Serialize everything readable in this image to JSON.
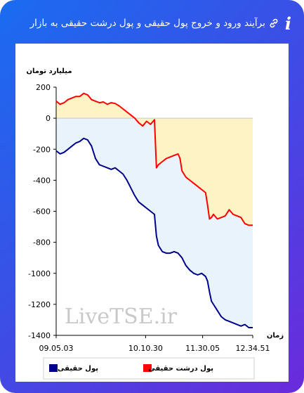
{
  "header": {
    "title": "برآیند ورود و خروج پول حقیقی و پول درشت حقیقی به بازار",
    "info_icon": "i",
    "info_icon_name": "info-icon",
    "link_icon_name": "link-icon"
  },
  "colors": {
    "frame_start": "#1a6cf0",
    "frame_end": "#6a2bdc",
    "real_money": "#00008b",
    "big_real_money": "#ff0000",
    "area_yellow": "#fdf3c4",
    "area_blue": "#e8f3fc"
  },
  "watermark": "LiveTSE.ir",
  "chart_data": {
    "type": "line",
    "ylabel": "میلیارد تومان",
    "xlabel": "زمان",
    "ylim": [
      -1400,
      200
    ],
    "y_ticks": [
      "200",
      "0",
      "-200",
      "-400",
      "-600",
      "-800",
      "-1000",
      "-1200",
      "-1400"
    ],
    "y_tick_values": [
      200,
      0,
      -200,
      -400,
      -600,
      -800,
      -1000,
      -1200,
      -1400
    ],
    "x_ticks": [
      "09.05.03",
      "10.10.30",
      "11.30.05",
      "12.34.51"
    ],
    "x_tick_positions": [
      0,
      0.455,
      0.745,
      1.0
    ],
    "grid": false,
    "legend_position": "bottom",
    "legend": [
      {
        "label": "پول حقیقی",
        "color": "#00008b"
      },
      {
        "label": "پول درشت حقیقی",
        "color": "#ff0000"
      }
    ],
    "series": [
      {
        "name": "پول درشت حقیقی",
        "color": "#ff0000",
        "fill": "#fdf3c4",
        "t": [
          0,
          0.02,
          0.04,
          0.06,
          0.08,
          0.1,
          0.12,
          0.14,
          0.16,
          0.18,
          0.2,
          0.22,
          0.24,
          0.26,
          0.28,
          0.3,
          0.32,
          0.34,
          0.36,
          0.38,
          0.4,
          0.42,
          0.44,
          0.46,
          0.48,
          0.5,
          0.51,
          0.52,
          0.53,
          0.54,
          0.56,
          0.58,
          0.6,
          0.62,
          0.63,
          0.64,
          0.66,
          0.68,
          0.7,
          0.72,
          0.74,
          0.76,
          0.77,
          0.78,
          0.79,
          0.8,
          0.82,
          0.84,
          0.86,
          0.88,
          0.9,
          0.92,
          0.94,
          0.96,
          0.98,
          1.0
        ],
        "values": [
          110,
          90,
          100,
          120,
          130,
          140,
          140,
          160,
          150,
          120,
          110,
          100,
          105,
          90,
          100,
          95,
          80,
          60,
          40,
          20,
          0,
          -30,
          -50,
          -20,
          -40,
          -10,
          -320,
          -300,
          -290,
          -280,
          -260,
          -250,
          -240,
          -230,
          -260,
          -340,
          -380,
          -400,
          -420,
          -440,
          -460,
          -480,
          -560,
          -650,
          -640,
          -620,
          -650,
          -640,
          -630,
          -590,
          -620,
          -630,
          -640,
          -680,
          -690,
          -690
        ]
      },
      {
        "name": "پول حقیقی",
        "color": "#00008b",
        "fill": "#e8f3fc",
        "t": [
          0,
          0.02,
          0.04,
          0.06,
          0.08,
          0.1,
          0.12,
          0.14,
          0.16,
          0.18,
          0.2,
          0.22,
          0.24,
          0.26,
          0.28,
          0.3,
          0.32,
          0.34,
          0.36,
          0.38,
          0.4,
          0.42,
          0.44,
          0.46,
          0.48,
          0.5,
          0.51,
          0.52,
          0.53,
          0.54,
          0.56,
          0.58,
          0.6,
          0.62,
          0.64,
          0.66,
          0.68,
          0.7,
          0.72,
          0.74,
          0.76,
          0.77,
          0.78,
          0.79,
          0.8,
          0.82,
          0.84,
          0.86,
          0.88,
          0.9,
          0.92,
          0.94,
          0.96,
          0.98,
          1.0
        ],
        "values": [
          -210,
          -230,
          -220,
          -200,
          -180,
          -160,
          -150,
          -130,
          -140,
          -180,
          -260,
          -300,
          -310,
          -320,
          -330,
          -320,
          -340,
          -360,
          -400,
          -450,
          -500,
          -540,
          -560,
          -580,
          -600,
          -620,
          -760,
          -820,
          -840,
          -860,
          -870,
          -870,
          -860,
          -870,
          -900,
          -950,
          -980,
          -1000,
          -1010,
          -1000,
          -1020,
          -1050,
          -1120,
          -1180,
          -1200,
          -1240,
          -1280,
          -1300,
          -1310,
          -1320,
          -1330,
          -1340,
          -1330,
          -1350,
          -1350
        ]
      }
    ]
  }
}
